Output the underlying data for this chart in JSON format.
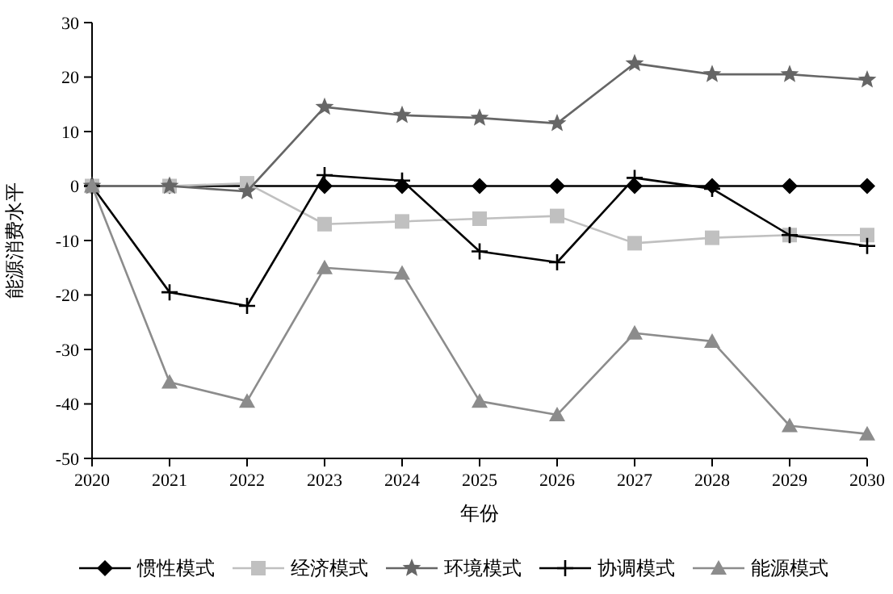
{
  "chart_data": {
    "type": "line",
    "xlabel": "年份",
    "ylabel": "能源消费水平",
    "x": [
      2020,
      2021,
      2022,
      2023,
      2024,
      2025,
      2026,
      2027,
      2028,
      2029,
      2030
    ],
    "xlim": [
      2020,
      2030
    ],
    "xticks": [
      2020,
      2021,
      2022,
      2023,
      2024,
      2025,
      2026,
      2027,
      2028,
      2029,
      2030
    ],
    "ylim": [
      -50,
      30
    ],
    "yticks": [
      -50,
      -40,
      -30,
      -20,
      -10,
      0,
      10,
      20,
      30
    ],
    "grid": false,
    "legend": "bottom",
    "series": [
      {
        "name": "惯性模式",
        "color": "#000000",
        "marker": "diamond",
        "values": [
          0,
          0,
          0,
          0,
          0,
          0,
          0,
          0,
          0,
          0,
          0
        ]
      },
      {
        "name": "经济模式",
        "color": "#c0c0c0",
        "marker": "square",
        "values": [
          0,
          0,
          0.5,
          -7,
          -6.5,
          -6,
          -5.5,
          -10.5,
          -9.5,
          -9,
          -9
        ]
      },
      {
        "name": "环境模式",
        "color": "#666666",
        "marker": "star",
        "values": [
          0,
          0,
          -1,
          14.5,
          13,
          12.5,
          11.5,
          22.5,
          20.5,
          20.5,
          19.5
        ]
      },
      {
        "name": "协调模式",
        "color": "#000000",
        "marker": "cross",
        "values": [
          0,
          -19.5,
          -22,
          2,
          1,
          -12,
          -14,
          1.5,
          -0.5,
          -9,
          -11
        ]
      },
      {
        "name": "能源模式",
        "color": "#8c8c8c",
        "marker": "triangle",
        "values": [
          0,
          -36,
          -39.5,
          -15,
          -16,
          -39.5,
          -42,
          -27,
          -28.5,
          -44,
          -45.5
        ]
      }
    ]
  }
}
